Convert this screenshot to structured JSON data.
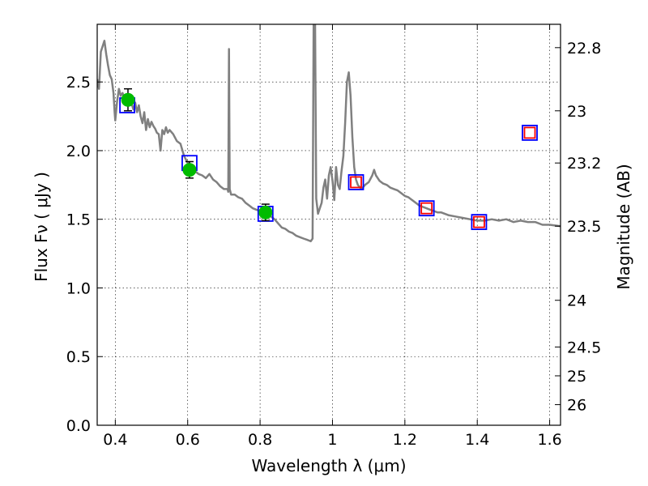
{
  "chart_data": {
    "type": "line",
    "xlabel": "Wavelength  λ (μm)",
    "ylabel": "Flux  Fν  ( μJy )",
    "ylabel_right": "Magnitude (AB)",
    "xlim": [
      0.35,
      1.63
    ],
    "ylim": [
      0.0,
      2.92
    ],
    "grid": true,
    "x_ticks": [
      {
        "value": 0.4,
        "label": "0.4"
      },
      {
        "value": 0.6,
        "label": "0.6"
      },
      {
        "value": 0.8,
        "label": "0.8"
      },
      {
        "value": 1.0,
        "label": "1"
      },
      {
        "value": 1.2,
        "label": "1.2"
      },
      {
        "value": 1.4,
        "label": "1.4"
      },
      {
        "value": 1.6,
        "label": "1.6"
      }
    ],
    "y_ticks": [
      {
        "value": 0.0,
        "label": "0.0"
      },
      {
        "value": 0.5,
        "label": "0.5"
      },
      {
        "value": 1.0,
        "label": "1.0"
      },
      {
        "value": 1.5,
        "label": "1.5"
      },
      {
        "value": 2.0,
        "label": "2.0"
      },
      {
        "value": 2.5,
        "label": "2.5"
      }
    ],
    "right_ticks": [
      {
        "flux": 2.75,
        "label": "22.8"
      },
      {
        "flux": 2.29,
        "label": "23"
      },
      {
        "flux": 1.91,
        "label": "23.2"
      },
      {
        "flux": 1.45,
        "label": "23.5"
      },
      {
        "flux": 0.91,
        "label": "24"
      },
      {
        "flux": 0.57,
        "label": "24.5"
      },
      {
        "flux": 0.36,
        "label": "25"
      },
      {
        "flux": 0.15,
        "label": "26"
      }
    ],
    "series": [
      {
        "style": "line",
        "color": "#808080",
        "points": [
          [
            0.35,
            2.52
          ],
          [
            0.355,
            2.45
          ],
          [
            0.36,
            2.72
          ],
          [
            0.365,
            2.76
          ],
          [
            0.37,
            2.8
          ],
          [
            0.375,
            2.7
          ],
          [
            0.38,
            2.62
          ],
          [
            0.385,
            2.55
          ],
          [
            0.39,
            2.52
          ],
          [
            0.395,
            2.42
          ],
          [
            0.398,
            2.28
          ],
          [
            0.4,
            2.22
          ],
          [
            0.405,
            2.36
          ],
          [
            0.41,
            2.45
          ],
          [
            0.415,
            2.4
          ],
          [
            0.42,
            2.42
          ],
          [
            0.425,
            2.38
          ],
          [
            0.43,
            2.4
          ],
          [
            0.435,
            2.37
          ],
          [
            0.44,
            2.33
          ],
          [
            0.445,
            2.34
          ],
          [
            0.45,
            2.3
          ],
          [
            0.455,
            2.35
          ],
          [
            0.46,
            2.28
          ],
          [
            0.465,
            2.33
          ],
          [
            0.47,
            2.25
          ],
          [
            0.475,
            2.2
          ],
          [
            0.48,
            2.28
          ],
          [
            0.485,
            2.15
          ],
          [
            0.49,
            2.23
          ],
          [
            0.495,
            2.17
          ],
          [
            0.5,
            2.21
          ],
          [
            0.505,
            2.18
          ],
          [
            0.51,
            2.16
          ],
          [
            0.515,
            2.13
          ],
          [
            0.52,
            2.12
          ],
          [
            0.525,
            2.0
          ],
          [
            0.53,
            2.15
          ],
          [
            0.535,
            2.12
          ],
          [
            0.54,
            2.17
          ],
          [
            0.545,
            2.13
          ],
          [
            0.55,
            2.15
          ],
          [
            0.56,
            2.12
          ],
          [
            0.57,
            2.07
          ],
          [
            0.58,
            2.05
          ],
          [
            0.59,
            1.96
          ],
          [
            0.6,
            1.91
          ],
          [
            0.61,
            1.88
          ],
          [
            0.62,
            1.85
          ],
          [
            0.63,
            1.83
          ],
          [
            0.64,
            1.82
          ],
          [
            0.65,
            1.8
          ],
          [
            0.66,
            1.83
          ],
          [
            0.67,
            1.79
          ],
          [
            0.68,
            1.77
          ],
          [
            0.69,
            1.74
          ],
          [
            0.7,
            1.72
          ],
          [
            0.71,
            1.72
          ],
          [
            0.712,
            1.7
          ],
          [
            0.714,
            2.74
          ],
          [
            0.716,
            1.72
          ],
          [
            0.72,
            1.68
          ],
          [
            0.73,
            1.68
          ],
          [
            0.74,
            1.66
          ],
          [
            0.75,
            1.65
          ],
          [
            0.76,
            1.62
          ],
          [
            0.77,
            1.6
          ],
          [
            0.78,
            1.58
          ],
          [
            0.79,
            1.57
          ],
          [
            0.8,
            1.56
          ],
          [
            0.81,
            1.55
          ],
          [
            0.82,
            1.54
          ],
          [
            0.83,
            1.52
          ],
          [
            0.84,
            1.5
          ],
          [
            0.85,
            1.47
          ],
          [
            0.86,
            1.44
          ],
          [
            0.87,
            1.43
          ],
          [
            0.88,
            1.41
          ],
          [
            0.89,
            1.4
          ],
          [
            0.9,
            1.38
          ],
          [
            0.91,
            1.37
          ],
          [
            0.92,
            1.36
          ],
          [
            0.93,
            1.35
          ],
          [
            0.94,
            1.34
          ],
          [
            0.945,
            1.36
          ],
          [
            0.948,
            2.92
          ],
          [
            0.952,
            2.92
          ],
          [
            0.955,
            1.65
          ],
          [
            0.96,
            1.54
          ],
          [
            0.965,
            1.58
          ],
          [
            0.97,
            1.62
          ],
          [
            0.975,
            1.73
          ],
          [
            0.98,
            1.79
          ],
          [
            0.985,
            1.65
          ],
          [
            0.99,
            1.82
          ],
          [
            0.995,
            1.88
          ],
          [
            1.0,
            1.78
          ],
          [
            1.005,
            1.64
          ],
          [
            1.01,
            1.88
          ],
          [
            1.015,
            1.75
          ],
          [
            1.02,
            1.72
          ],
          [
            1.025,
            1.85
          ],
          [
            1.03,
            1.96
          ],
          [
            1.035,
            2.2
          ],
          [
            1.04,
            2.5
          ],
          [
            1.045,
            2.57
          ],
          [
            1.05,
            2.4
          ],
          [
            1.055,
            2.1
          ],
          [
            1.06,
            1.88
          ],
          [
            1.065,
            1.79
          ],
          [
            1.07,
            1.75
          ],
          [
            1.08,
            1.72
          ],
          [
            1.09,
            1.75
          ],
          [
            1.1,
            1.77
          ],
          [
            1.11,
            1.82
          ],
          [
            1.115,
            1.86
          ],
          [
            1.12,
            1.82
          ],
          [
            1.13,
            1.78
          ],
          [
            1.14,
            1.76
          ],
          [
            1.15,
            1.75
          ],
          [
            1.16,
            1.73
          ],
          [
            1.17,
            1.72
          ],
          [
            1.18,
            1.71
          ],
          [
            1.19,
            1.69
          ],
          [
            1.2,
            1.67
          ],
          [
            1.21,
            1.66
          ],
          [
            1.22,
            1.64
          ],
          [
            1.23,
            1.62
          ],
          [
            1.24,
            1.6
          ],
          [
            1.25,
            1.59
          ],
          [
            1.26,
            1.58
          ],
          [
            1.27,
            1.57
          ],
          [
            1.28,
            1.56
          ],
          [
            1.29,
            1.55
          ],
          [
            1.3,
            1.55
          ],
          [
            1.32,
            1.53
          ],
          [
            1.34,
            1.52
          ],
          [
            1.36,
            1.51
          ],
          [
            1.38,
            1.5
          ],
          [
            1.4,
            1.49
          ],
          [
            1.42,
            1.49
          ],
          [
            1.44,
            1.5
          ],
          [
            1.46,
            1.49
          ],
          [
            1.48,
            1.5
          ],
          [
            1.5,
            1.48
          ],
          [
            1.52,
            1.49
          ],
          [
            1.54,
            1.48
          ],
          [
            1.56,
            1.48
          ],
          [
            1.58,
            1.46
          ],
          [
            1.6,
            1.46
          ],
          [
            1.63,
            1.45
          ]
        ]
      },
      {
        "style": "square-markers",
        "edge_color": "#0000ff",
        "points": [
          [
            0.433,
            2.33
          ],
          [
            0.605,
            1.91
          ],
          [
            0.815,
            1.54
          ],
          [
            1.065,
            1.77
          ],
          [
            1.26,
            1.58
          ],
          [
            1.405,
            1.48
          ],
          [
            1.545,
            2.13
          ]
        ]
      },
      {
        "style": "square-markers",
        "edge_color": "#ff0000",
        "points": [
          [
            1.065,
            1.77
          ],
          [
            1.26,
            1.58
          ],
          [
            1.405,
            1.48
          ],
          [
            1.545,
            2.13
          ]
        ]
      },
      {
        "style": "circle-errorbar",
        "color": "#00bb00",
        "points": [
          {
            "x": 0.435,
            "y": 2.37,
            "err": 0.08
          },
          {
            "x": 0.605,
            "y": 1.86,
            "err": 0.06
          },
          {
            "x": 0.815,
            "y": 1.55,
            "err": 0.06
          }
        ]
      }
    ]
  }
}
